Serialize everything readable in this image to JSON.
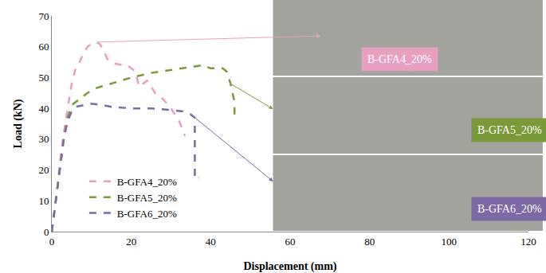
{
  "chart_data": {
    "type": "line",
    "x_label": "Displacement (mm)",
    "y_label": "Load (kN)",
    "xlim": [
      0,
      120
    ],
    "xticks": [
      0,
      20,
      40,
      60,
      80,
      100,
      120
    ],
    "ylim": [
      0,
      70
    ],
    "yticks": [
      0,
      10,
      20,
      30,
      40,
      50,
      60,
      70
    ],
    "grid": false,
    "legend": "lower left",
    "series": [
      {
        "name": "B-GFA4_20%",
        "color": "#e8a0bf",
        "line_style": "dash",
        "x": [
          0,
          1,
          2,
          3,
          4,
          5,
          6,
          7,
          8,
          9,
          10,
          11,
          12,
          13,
          14,
          15,
          16,
          18,
          19,
          20,
          21,
          22,
          23,
          24,
          25,
          26,
          28,
          30,
          31,
          32,
          33,
          33.5
        ],
        "values": [
          0,
          10,
          22,
          32,
          40,
          48,
          53,
          55,
          58,
          60,
          61,
          61.5,
          61,
          59,
          56,
          55,
          54.5,
          54,
          54,
          53,
          52,
          47,
          48,
          49,
          47,
          45,
          43,
          40,
          38,
          36,
          33,
          31
        ]
      },
      {
        "name": "B-GFA5_20%",
        "color": "#7a9a3a",
        "line_style": "dash",
        "x": [
          0,
          1,
          2,
          3,
          4,
          5,
          7,
          9,
          11,
          15,
          20,
          25,
          30,
          35,
          38,
          40,
          42,
          43,
          44,
          45,
          46,
          46
        ],
        "values": [
          0,
          10,
          20,
          30,
          37,
          41,
          43,
          45,
          46.5,
          48,
          50,
          51.5,
          52.5,
          53.5,
          54,
          53,
          53,
          53,
          52,
          48,
          42,
          38
        ]
      },
      {
        "name": "B-GFA6_20%",
        "color": "#7b6aa6",
        "line_style": "dash",
        "x": [
          0,
          1,
          2,
          3,
          4,
          5,
          6,
          8,
          10,
          13,
          15,
          20,
          25,
          30,
          33,
          35,
          36,
          36,
          37
        ],
        "values": [
          0,
          10,
          20,
          30,
          36,
          39,
          40.5,
          41,
          41.5,
          41,
          40.5,
          40,
          40,
          39.5,
          39,
          38,
          37,
          17,
          17.5
        ]
      }
    ]
  }
}
